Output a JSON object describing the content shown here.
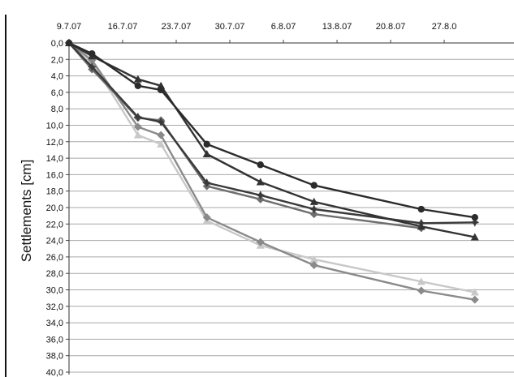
{
  "chart_data": {
    "type": "line",
    "title": "",
    "xlabel": "",
    "ylabel": "Settlements [cm]",
    "x_axis_position": "top",
    "y_inverted": true,
    "ylim": [
      0,
      40
    ],
    "grid": true,
    "legend": "none",
    "x_ticks": [
      "9.7.07",
      "16.7.07",
      "23.7.07",
      "30.7.07",
      "6.8.07",
      "13.8.07",
      "20.8.07",
      "27.8.0"
    ],
    "y_ticks": [
      "0,0",
      "2,0",
      "4,0",
      "6,0",
      "8,0",
      "10,0",
      "12,0",
      "14,0",
      "16,0",
      "18,0",
      "20,0",
      "22,0",
      "24,0",
      "26,0",
      "28,0",
      "30,0",
      "32,0",
      "34,0",
      "36,0",
      "38,0",
      "40,0"
    ],
    "series": [
      {
        "color": "#2b2b2b",
        "marker": "circle",
        "points": [
          [
            "9.7.07",
            0.0
          ],
          [
            "12.7.07",
            1.3
          ],
          [
            "18.7.07",
            5.2
          ],
          [
            "21.7.07",
            5.7
          ],
          [
            "27.7.07",
            12.3
          ],
          [
            "3.8.07",
            14.8
          ],
          [
            "10.8.07",
            17.3
          ],
          [
            "24.8.07",
            20.2
          ],
          [
            "31.8.07",
            21.2
          ]
        ]
      },
      {
        "color": "#333333",
        "marker": "triangle",
        "points": [
          [
            "9.7.07",
            0.0
          ],
          [
            "12.7.07",
            1.6
          ],
          [
            "18.7.07",
            4.4
          ],
          [
            "21.7.07",
            5.2
          ],
          [
            "27.7.07",
            13.5
          ],
          [
            "3.8.07",
            16.9
          ],
          [
            "10.8.07",
            19.3
          ],
          [
            "24.8.07",
            22.3
          ],
          [
            "31.8.07",
            23.6
          ]
        ]
      },
      {
        "color": "#3a3a3a",
        "marker": "star",
        "points": [
          [
            "9.7.07",
            0.0
          ],
          [
            "12.7.07",
            2.9
          ],
          [
            "18.7.07",
            9.0
          ],
          [
            "21.7.07",
            9.6
          ],
          [
            "27.7.07",
            17.0
          ],
          [
            "3.8.07",
            18.5
          ],
          [
            "10.8.07",
            20.2
          ],
          [
            "24.8.07",
            21.9
          ],
          [
            "31.8.07",
            21.8
          ]
        ]
      },
      {
        "color": "#6e6e6e",
        "marker": "diamond",
        "points": [
          [
            "9.7.07",
            0.0
          ],
          [
            "12.7.07",
            3.2
          ],
          [
            "18.7.07",
            9.1
          ],
          [
            "21.7.07",
            9.4
          ],
          [
            "27.7.07",
            17.4
          ],
          [
            "3.8.07",
            19.0
          ],
          [
            "10.8.07",
            20.8
          ],
          [
            "24.8.07",
            22.5
          ]
        ]
      },
      {
        "color": "#8a8a8a",
        "marker": "diamond",
        "points": [
          [
            "9.7.07",
            0.0
          ],
          [
            "12.7.07",
            2.1
          ],
          [
            "18.7.07",
            10.2
          ],
          [
            "21.7.07",
            11.2
          ],
          [
            "27.7.07",
            21.2
          ],
          [
            "3.8.07",
            24.2
          ],
          [
            "10.8.07",
            27.0
          ],
          [
            "24.8.07",
            30.1
          ],
          [
            "31.8.07",
            31.2
          ]
        ]
      },
      {
        "color": "#c8c8c8",
        "marker": "triangle",
        "points": [
          [
            "9.7.07",
            0.0
          ],
          [
            "12.7.07",
            2.3
          ],
          [
            "18.7.07",
            11.2
          ],
          [
            "21.7.07",
            12.3
          ],
          [
            "27.7.07",
            21.6
          ],
          [
            "3.8.07",
            24.6
          ],
          [
            "10.8.07",
            26.3
          ],
          [
            "24.8.07",
            29.0
          ],
          [
            "31.8.07",
            30.3
          ]
        ]
      }
    ]
  }
}
